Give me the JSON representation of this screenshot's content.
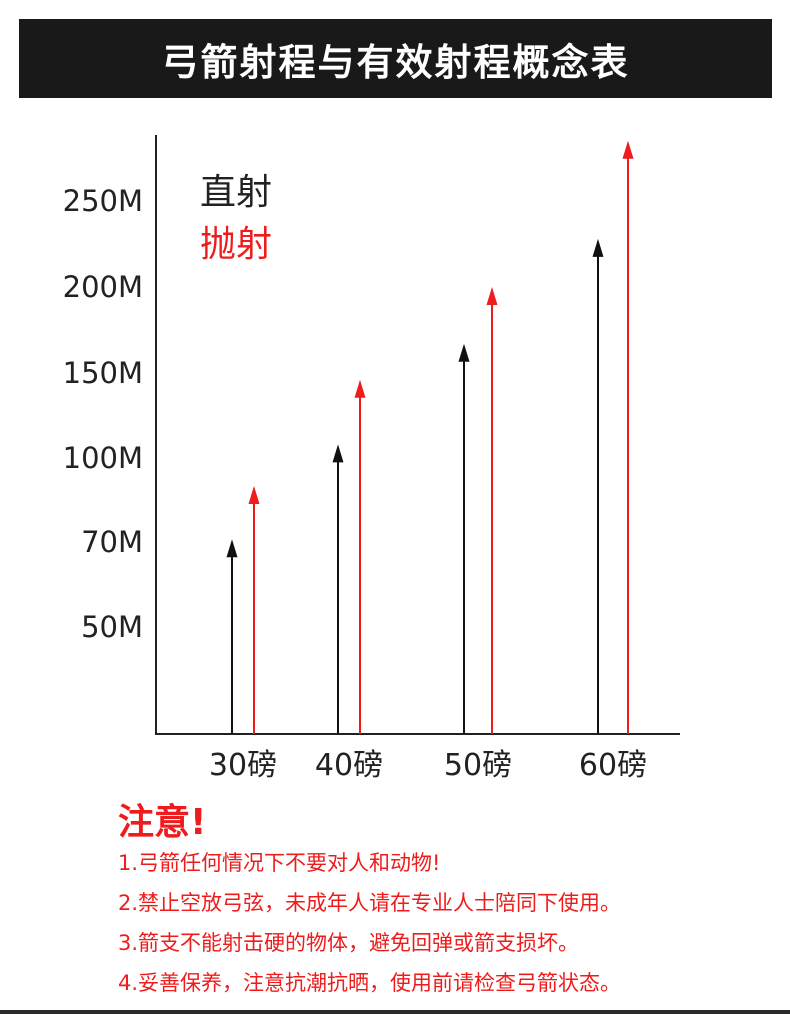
{
  "title": "弓箭射程与有效射程概念表",
  "legend": {
    "direct": "直射",
    "lob": "抛射"
  },
  "colors": {
    "direct": "#111111",
    "lob": "#ee1c1c",
    "title_bg": "#191919",
    "accent": "#ee1c1c"
  },
  "chart_data": {
    "type": "bar",
    "style": "arrows",
    "categories": [
      "30磅",
      "40磅",
      "50磅",
      "60磅"
    ],
    "y_tick_labels": [
      "50M",
      "70M",
      "100M",
      "150M",
      "200M",
      "250M"
    ],
    "series": [
      {
        "name": "直射",
        "values": [
          71,
          108,
          167,
          228
        ]
      },
      {
        "name": "抛射",
        "values": [
          90,
          146,
          200,
          285
        ]
      }
    ],
    "legend_position": "top-left",
    "grid": false
  },
  "notice": {
    "heading": "注意!",
    "lines": [
      "1.弓箭任何情况下不要对人和动物!",
      "2.禁止空放弓弦，未成年人请在专业人士陪同下使用。",
      "3.箭支不能射击硬的物体，避免回弹或箭支损坏。",
      "4.妥善保养，注意抗潮抗晒，使用前请检查弓箭状态。"
    ]
  }
}
